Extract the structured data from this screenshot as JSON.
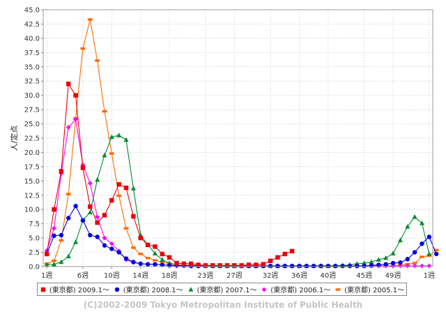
{
  "chart_data": {
    "type": "line",
    "ylabel": "人/定点",
    "xlabel": "",
    "ylim": [
      0,
      45
    ],
    "yticks": [
      "0.0",
      "2.5",
      "5.0",
      "7.5",
      "10.0",
      "12.5",
      "15.0",
      "17.5",
      "20.0",
      "22.5",
      "25.0",
      "27.5",
      "30.0",
      "32.5",
      "35.0",
      "37.5",
      "40.0",
      "42.5",
      "45.0"
    ],
    "xticks": [
      {
        "week": 1,
        "label": "1週"
      },
      {
        "week": 6,
        "label": "6週"
      },
      {
        "week": 10,
        "label": "10週"
      },
      {
        "week": 14,
        "label": "14週"
      },
      {
        "week": 18,
        "label": "18週"
      },
      {
        "week": 23,
        "label": "23週"
      },
      {
        "week": 27,
        "label": "27週"
      },
      {
        "week": 32,
        "label": "32週"
      },
      {
        "week": 36,
        "label": "36週"
      },
      {
        "week": 40,
        "label": "40週"
      },
      {
        "week": 45,
        "label": "45週"
      },
      {
        "week": 49,
        "label": "49週"
      },
      {
        "week": 54,
        "label": "1週"
      }
    ],
    "grid": true,
    "legend_position": "bottom",
    "series": [
      {
        "name": "(東京都) 2009.1〜",
        "color": "#e8000b",
        "marker": "square",
        "start_week": 1,
        "values": [
          2.2,
          10.0,
          16.7,
          32.0,
          30.0,
          17.3,
          10.5,
          7.7,
          9.0,
          11.6,
          14.4,
          13.8,
          8.8,
          5.0,
          3.8,
          3.5,
          2.2,
          1.6,
          0.6,
          0.5,
          0.5,
          0.3,
          0.2,
          0.2,
          0.2,
          0.2,
          0.2,
          0.2,
          0.3,
          0.3,
          0.4,
          1.0,
          1.6,
          2.2,
          2.7
        ]
      },
      {
        "name": "(東京都) 2008.1〜",
        "color": "#0000e6",
        "marker": "circle",
        "start_week": 1,
        "values": [
          2.2,
          5.4,
          5.5,
          8.5,
          10.6,
          8.1,
          5.5,
          5.2,
          3.7,
          3.1,
          2.5,
          1.4,
          0.8,
          0.5,
          0.4,
          0.4,
          0.3,
          0.2,
          0.2,
          0.2,
          0.1,
          0.1,
          0.1,
          0.1,
          0.1,
          0.1,
          0.1,
          0.1,
          0.1,
          0.1,
          0.1,
          0.1,
          0.1,
          0.1,
          0.1,
          0.1,
          0.1,
          0.1,
          0.1,
          0.1,
          0.1,
          0.1,
          0.1,
          0.1,
          0.1,
          0.2,
          0.3,
          0.4,
          0.6,
          0.7,
          1.3,
          2.5,
          4.0,
          5.2,
          2.2
        ]
      },
      {
        "name": "(東京都) 2007.1〜",
        "color": "#008b2e",
        "marker": "triangle",
        "start_week": 1,
        "values": [
          0.3,
          0.4,
          0.8,
          1.8,
          4.3,
          8.1,
          9.5,
          15.2,
          19.5,
          22.7,
          23.0,
          22.2,
          13.7,
          5.5,
          3.8,
          2.3,
          1.2,
          0.6,
          0.3,
          0.2,
          0.2,
          0.2,
          0.1,
          0.1,
          0.1,
          0.1,
          0.1,
          0.1,
          0.1,
          0.1,
          0.1,
          0.1,
          0.1,
          0.1,
          0.1,
          0.1,
          0.1,
          0.1,
          0.1,
          0.1,
          0.1,
          0.2,
          0.3,
          0.5,
          0.6,
          0.8,
          1.2,
          1.5,
          2.3,
          4.6,
          7.0,
          8.7,
          7.6,
          2.2
        ]
      },
      {
        "name": "(東京都) 2006.1〜",
        "color": "#ff00ff",
        "marker": "diamond",
        "start_week": 1,
        "values": [
          2.8,
          6.7,
          16.3,
          24.4,
          25.8,
          17.8,
          14.6,
          8.7,
          5.0,
          4.0,
          2.7,
          1.2,
          0.7,
          0.5,
          0.4,
          0.4,
          0.3,
          0.2,
          0.1,
          0.1,
          0.1,
          0.1,
          0.1,
          0.1,
          0.1,
          0.1,
          0.1,
          0.1,
          0.1,
          0.1,
          0.1,
          0.1,
          0.1,
          0.1,
          0.1,
          0.1,
          0.1,
          0.1,
          0.1,
          0.1,
          0.1,
          0.1,
          0.1,
          0.1,
          0.1,
          0.1,
          0.1,
          0.1,
          0.1,
          0.1,
          0.1,
          0.1,
          0.1,
          0.1
        ]
      },
      {
        "name": "(東京都) 2005.1〜",
        "color": "#ff6a00",
        "marker": "bar",
        "start_week": 1,
        "values": [
          0.5,
          1.0,
          4.6,
          12.7,
          26.0,
          38.2,
          43.3,
          36.1,
          27.2,
          19.8,
          12.4,
          6.7,
          3.3,
          2.2,
          1.5,
          1.1,
          0.8,
          0.5,
          0.3,
          0.2,
          0.2,
          0.2,
          0.1,
          0.1,
          0.1,
          0.1,
          0.1,
          0.1,
          0.1,
          0.1,
          0.1,
          0.1,
          0.1,
          0.1,
          0.1,
          0.1,
          0.1,
          0.1,
          0.1,
          0.1,
          0.1,
          0.1,
          0.1,
          0.1,
          0.1,
          0.1,
          0.1,
          0.1,
          0.1,
          0.2,
          0.4,
          0.6,
          1.7,
          1.9,
          2.9
        ]
      }
    ]
  },
  "credit": "(C)2002-2009 Tokyo Metropolitan Institute of Public Health"
}
